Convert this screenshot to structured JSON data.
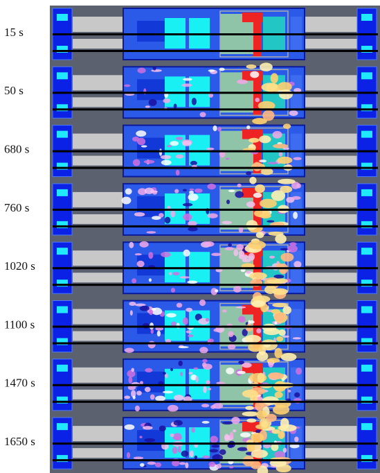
{
  "labels": [
    "15 s",
    "50 s",
    "680 s",
    "760 s",
    "1020 s",
    "1100 s",
    "1470 s",
    "1650 s"
  ]
}
